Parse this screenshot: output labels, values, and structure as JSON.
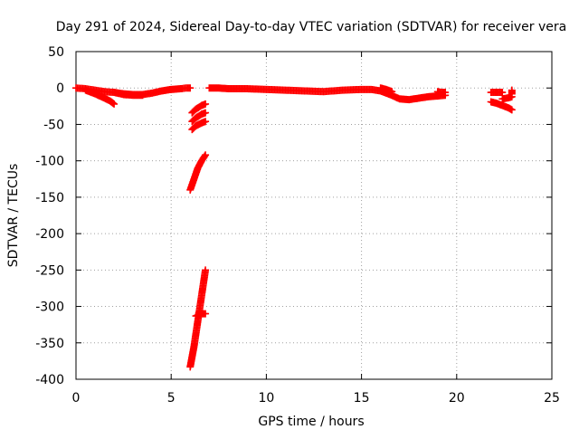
{
  "chart_data": {
    "type": "scatter",
    "title": "Day 291 of 2024, Sidereal Day-to-day VTEC variation (SDTVAR) for receiver vera",
    "xlabel": "GPS time / hours",
    "ylabel": "SDTVAR / TECUs",
    "xlim": [
      0,
      25
    ],
    "ylim": [
      -400,
      50
    ],
    "xticks": [
      0,
      5,
      10,
      15,
      20,
      25
    ],
    "yticks": [
      50,
      0,
      -50,
      -100,
      -150,
      -200,
      -250,
      -300,
      -350,
      -400
    ],
    "grid": true,
    "marker": "+",
    "series": [
      {
        "name": "SDTVAR",
        "color": "#ff0000",
        "segments": [
          [
            [
              0.0,
              0
            ],
            [
              0.5,
              -1
            ],
            [
              1.0,
              -3
            ],
            [
              1.5,
              -5
            ],
            [
              2.0,
              -6
            ],
            [
              2.5,
              -8
            ],
            [
              3.0,
              -9
            ],
            [
              3.5,
              -9
            ],
            [
              4.0,
              -7
            ],
            [
              4.5,
              -4
            ],
            [
              5.0,
              -2
            ],
            [
              5.5,
              -1
            ],
            [
              5.8,
              0
            ],
            [
              6.0,
              0
            ]
          ],
          [
            [
              0.5,
              -3
            ],
            [
              1.0,
              -8
            ],
            [
              1.5,
              -14
            ],
            [
              1.8,
              -18
            ],
            [
              2.0,
              -22
            ]
          ],
          [
            [
              2.0,
              -6
            ],
            [
              2.5,
              -9
            ],
            [
              3.0,
              -10
            ],
            [
              3.5,
              -10
            ]
          ],
          [
            [
              6.1,
              -34
            ],
            [
              6.3,
              -29
            ],
            [
              6.6,
              -24
            ],
            [
              6.8,
              -22
            ]
          ],
          [
            [
              6.1,
              -46
            ],
            [
              6.3,
              -41
            ],
            [
              6.6,
              -36
            ],
            [
              6.8,
              -34
            ]
          ],
          [
            [
              6.1,
              -57
            ],
            [
              6.3,
              -52
            ],
            [
              6.6,
              -48
            ],
            [
              6.8,
              -46
            ]
          ],
          [
            [
              6.0,
              -140
            ],
            [
              6.2,
              -125
            ],
            [
              6.4,
              -110
            ],
            [
              6.6,
              -100
            ],
            [
              6.8,
              -92
            ]
          ],
          [
            [
              6.0,
              -383
            ],
            [
              6.2,
              -355
            ],
            [
              6.4,
              -320
            ],
            [
              6.6,
              -285
            ],
            [
              6.8,
              -250
            ]
          ],
          [
            [
              6.3,
              -313
            ],
            [
              6.6,
              -310
            ],
            [
              6.8,
              -310
            ]
          ],
          [
            [
              7.0,
              0
            ],
            [
              7.5,
              0
            ],
            [
              8.0,
              -1
            ],
            [
              9.0,
              -1
            ],
            [
              10.0,
              -2
            ],
            [
              11.0,
              -3
            ],
            [
              12.0,
              -4
            ],
            [
              13.0,
              -5
            ],
            [
              14.0,
              -3
            ],
            [
              15.0,
              -2
            ],
            [
              15.5,
              -2
            ],
            [
              16.0,
              -4
            ],
            [
              16.5,
              -9
            ],
            [
              17.0,
              -15
            ],
            [
              17.5,
              -16
            ],
            [
              18.0,
              -14
            ],
            [
              18.5,
              -12
            ],
            [
              19.0,
              -11
            ],
            [
              19.4,
              -10
            ]
          ],
          [
            [
              16.0,
              0
            ],
            [
              16.3,
              -2
            ],
            [
              16.6,
              -5
            ]
          ],
          [
            [
              19.0,
              -5
            ],
            [
              19.2,
              -6
            ],
            [
              19.4,
              -6
            ]
          ],
          [
            [
              21.8,
              -6
            ],
            [
              22.0,
              -6
            ],
            [
              22.2,
              -6
            ],
            [
              22.4,
              -6
            ]
          ],
          [
            [
              21.8,
              -19
            ],
            [
              22.1,
              -21
            ],
            [
              22.4,
              -24
            ],
            [
              22.7,
              -27
            ],
            [
              22.9,
              -30
            ]
          ],
          [
            [
              22.4,
              -15
            ],
            [
              22.6,
              -14
            ],
            [
              22.8,
              -13
            ],
            [
              22.9,
              -12
            ]
          ],
          [
            [
              22.9,
              -3
            ],
            [
              22.9,
              -8
            ]
          ]
        ]
      }
    ]
  }
}
